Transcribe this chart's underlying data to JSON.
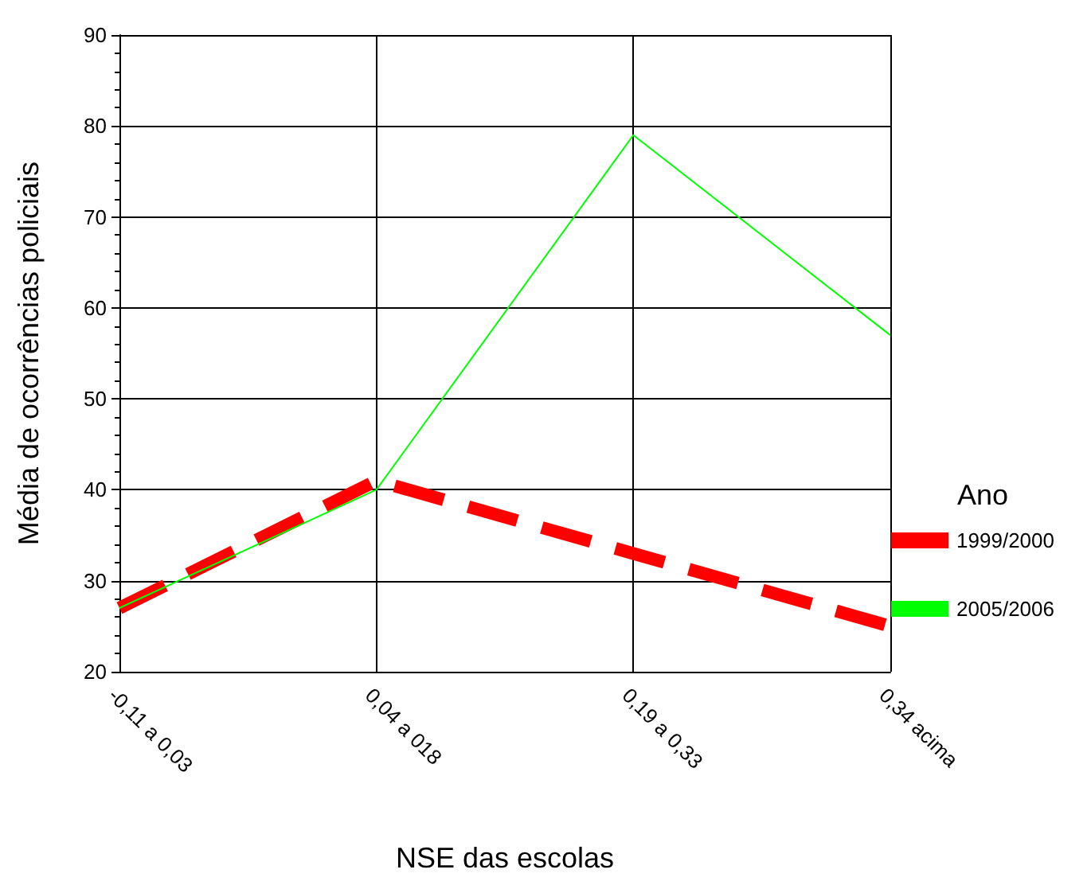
{
  "chart_data": {
    "type": "line",
    "xlabel": "NSE das escolas",
    "ylabel": "Média de ocorrências policiais",
    "legend_title": "Ano",
    "categories": [
      "-0,11 a 0,03",
      "0,04 a 018",
      "0,19 a 0,33",
      "0,34 acima"
    ],
    "series": [
      {
        "name": "1999/2000",
        "color": "#ff0000",
        "values": [
          27,
          41,
          33,
          25
        ],
        "line_style": "dashed"
      },
      {
        "name": "2005/2006",
        "color": "#00ff00",
        "values": [
          27,
          40,
          79,
          57
        ],
        "line_style": "solid"
      }
    ],
    "ylim": [
      20,
      90
    ],
    "yticks": [
      20,
      30,
      40,
      50,
      60,
      70,
      80,
      90
    ],
    "grid": true,
    "legend": "right",
    "marker": "none"
  }
}
